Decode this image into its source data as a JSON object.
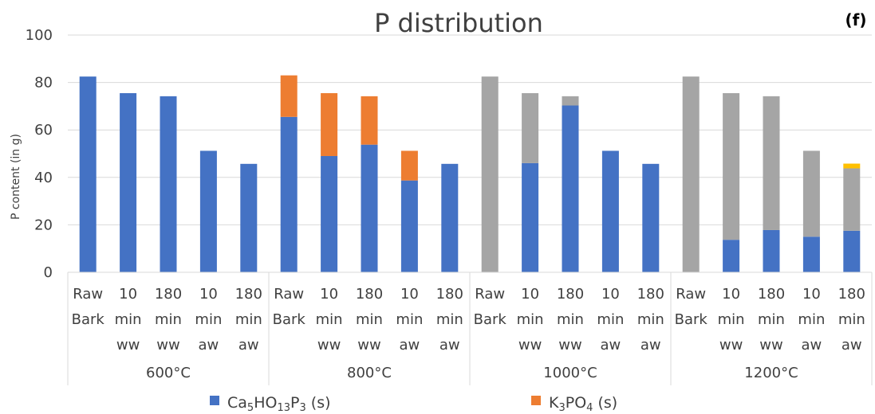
{
  "chart_data": {
    "type": "bar",
    "stacked": true,
    "title": "P distribution",
    "panel_label": "(f)",
    "ylabel": "P content (in g)",
    "ylim": [
      0,
      100
    ],
    "yticks": [
      0,
      20,
      40,
      60,
      80,
      100
    ],
    "grid": true,
    "groups": [
      {
        "label": "600°C",
        "categories": [
          [
            "Raw",
            "Bark"
          ],
          [
            "10",
            "min",
            "ww"
          ],
          [
            "180",
            "min",
            "ww"
          ],
          [
            "10",
            "min",
            "aw"
          ],
          [
            "180",
            "min",
            "aw"
          ]
        ]
      },
      {
        "label": "800°C",
        "categories": [
          [
            "Raw",
            "Bark"
          ],
          [
            "10",
            "min",
            "ww"
          ],
          [
            "180",
            "min",
            "ww"
          ],
          [
            "10",
            "min",
            "aw"
          ],
          [
            "180",
            "min",
            "aw"
          ]
        ]
      },
      {
        "label": "1000°C",
        "categories": [
          [
            "Raw",
            "Bark"
          ],
          [
            "10",
            "min",
            "ww"
          ],
          [
            "180",
            "min",
            "ww"
          ],
          [
            "10",
            "min",
            "aw"
          ],
          [
            "180",
            "min",
            "aw"
          ]
        ]
      },
      {
        "label": "1200°C",
        "categories": [
          [
            "Raw",
            "Bark"
          ],
          [
            "10",
            "min",
            "ww"
          ],
          [
            "180",
            "min",
            "ww"
          ],
          [
            "10",
            "min",
            "aw"
          ],
          [
            "180",
            "min",
            "aw"
          ]
        ]
      }
    ],
    "series": [
      {
        "name": "Ca5HO13P3 (s)",
        "color": "#4472c4",
        "values": [
          82.5,
          75.5,
          74.2,
          51.2,
          45.7,
          65.5,
          49.0,
          53.8,
          38.7,
          45.7,
          0,
          46.0,
          70.3,
          51.2,
          45.7,
          0,
          13.7,
          17.8,
          15.0,
          17.5
        ]
      },
      {
        "color": "#ed7d31",
        "values": [
          0,
          0,
          0,
          0,
          0,
          17.5,
          26.5,
          20.4,
          12.5,
          0,
          0,
          0,
          0,
          0,
          0,
          0,
          0,
          0,
          0,
          0
        ]
      },
      {
        "color": "#a5a5a5",
        "values": [
          0,
          0,
          0,
          0,
          0,
          0,
          0,
          0,
          0,
          0,
          82.5,
          29.5,
          3.9,
          0,
          0,
          82.5,
          61.8,
          56.4,
          36.2,
          26.3
        ]
      },
      {
        "color": "#ffc000",
        "values": [
          0,
          0,
          0,
          0,
          0,
          0,
          0,
          0,
          0,
          0,
          0,
          0,
          0,
          0,
          0,
          0,
          0,
          0,
          0,
          2.0
        ]
      }
    ],
    "legend": {
      "position": "bottom",
      "items": [
        {
          "main": "Ca",
          "sub": [
            "5",
            "13",
            "3"
          ],
          "parts": [
            "Ca",
            "5",
            "HO",
            "13",
            "P",
            "3",
            " (s)"
          ],
          "color": "#4472c4"
        },
        {
          "parts": [
            "K",
            "3",
            "PO",
            "4",
            " (s)"
          ],
          "color": "#ed7d31"
        }
      ]
    }
  }
}
